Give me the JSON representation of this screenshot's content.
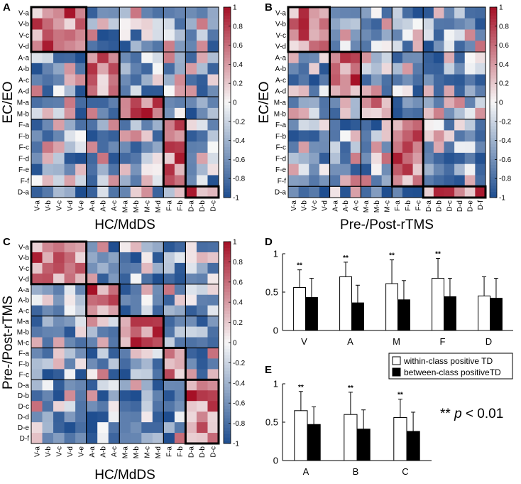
{
  "colors": {
    "neg": "#1e4d8f",
    "mid": "#f7f7f7",
    "pos": "#a50f25"
  },
  "colorbar": {
    "ticks": [
      1,
      0.8,
      0.6,
      0.4,
      0.2,
      0,
      -0.2,
      -0.4,
      -0.6,
      -0.8,
      -1
    ]
  },
  "chart_data": [
    {
      "panel": "A",
      "type": "heatmap",
      "ylabel": "EC/EO",
      "xlabel": "HC/MdDS",
      "rows": [
        "V-a",
        "V-b",
        "V-c",
        "V-d",
        "A-a",
        "A-b",
        "A-c",
        "A-d",
        "M-a",
        "M-b",
        "F-a",
        "F-b",
        "F-c",
        "F-d",
        "F-e",
        "F-f",
        "D-a"
      ],
      "cols": [
        "V-a",
        "V-b",
        "V-c",
        "V-d",
        "V-e",
        "A-a",
        "A-b",
        "A-c",
        "M-a",
        "M-b",
        "M-c",
        "M-d",
        "F-a",
        "F-b",
        "D-a",
        "D-b",
        "D-c"
      ],
      "row_groups": [
        4,
        4,
        2,
        6,
        1
      ],
      "col_groups": [
        5,
        3,
        4,
        2,
        3
      ],
      "clim": [
        -1,
        1
      ]
    },
    {
      "panel": "B",
      "type": "heatmap",
      "ylabel": "EC/EO",
      "xlabel": "Pre-/Post-rTMS",
      "rows": [
        "V-a",
        "V-b",
        "V-c",
        "V-d",
        "A-a",
        "A-b",
        "A-c",
        "A-d",
        "M-a",
        "M-b",
        "F-a",
        "F-b",
        "F-c",
        "F-d",
        "F-e",
        "F-f",
        "D-a"
      ],
      "cols": [
        "V-a",
        "V-b",
        "V-c",
        "V-d",
        "A-a",
        "A-b",
        "A-c",
        "M-a",
        "M-b",
        "M-c",
        "F-a",
        "F-b",
        "F-c",
        "D-a",
        "D-b",
        "D-c",
        "D-d",
        "D-e",
        "D-f"
      ],
      "row_groups": [
        4,
        4,
        2,
        6,
        1
      ],
      "col_groups": [
        4,
        3,
        3,
        3,
        6
      ],
      "clim": [
        -1,
        1
      ]
    },
    {
      "panel": "C",
      "type": "heatmap",
      "ylabel": "Pre-/Post-rTMS",
      "xlabel": "HC/MdDS",
      "rows": [
        "V-a",
        "V-b",
        "V-c",
        "V-d",
        "A-a",
        "A-b",
        "A-c",
        "M-a",
        "M-b",
        "M-c",
        "F-a",
        "F-b",
        "F-c",
        "D-a",
        "D-b",
        "D-c",
        "D-d",
        "D-e",
        "D-f"
      ],
      "cols": [
        "V-a",
        "V-b",
        "V-c",
        "V-d",
        "V-e",
        "A-a",
        "A-b",
        "A-c",
        "M-a",
        "M-b",
        "M-c",
        "M-d",
        "F-a",
        "F-b",
        "D-a",
        "D-b",
        "D-c"
      ],
      "row_groups": [
        4,
        3,
        3,
        3,
        6
      ],
      "col_groups": [
        5,
        3,
        4,
        2,
        3
      ],
      "clim": [
        -1,
        1
      ]
    },
    {
      "panel": "D",
      "type": "bar",
      "categories": [
        "V",
        "A",
        "M",
        "F",
        "D"
      ],
      "series": [
        {
          "name": "within-class positive TD",
          "values": [
            0.56,
            0.7,
            0.61,
            0.68,
            0.45
          ],
          "errors": [
            0.23,
            0.19,
            0.31,
            0.26,
            0.25
          ]
        },
        {
          "name": "between-class positiveTD",
          "values": [
            0.43,
            0.36,
            0.4,
            0.44,
            0.42
          ],
          "errors": [
            0.25,
            0.23,
            0.25,
            0.24,
            0.26
          ]
        }
      ],
      "significance": [
        "**",
        "**",
        "**",
        "**",
        ""
      ],
      "ylim": [
        0,
        1
      ],
      "yticks": [
        0,
        0.5,
        1
      ]
    },
    {
      "panel": "E",
      "type": "bar",
      "categories": [
        "A",
        "B",
        "C"
      ],
      "series": [
        {
          "name": "within-class positive TD",
          "values": [
            0.65,
            0.6,
            0.56
          ],
          "errors": [
            0.25,
            0.29,
            0.24
          ]
        },
        {
          "name": "between-class positiveTD",
          "values": [
            0.47,
            0.41,
            0.38
          ],
          "errors": [
            0.23,
            0.25,
            0.25
          ]
        }
      ],
      "significance": [
        "**",
        "**",
        "**"
      ],
      "ylim": [
        0,
        1
      ],
      "yticks": [
        0,
        0.5,
        1
      ]
    }
  ],
  "legend": {
    "within": "within-class positive TD",
    "between": "between-class positiveTD"
  },
  "pvalue": {
    "stars": "** ",
    "p": "p",
    "rest": " < 0.01"
  }
}
